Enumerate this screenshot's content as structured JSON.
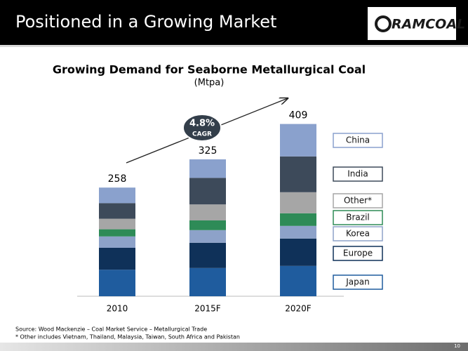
{
  "header": {
    "title": "Positioned in a Growing Market",
    "logo": "RAMCOAL"
  },
  "chart_data": {
    "type": "stacked-bar",
    "title": "Growing Demand for Seaborne Metallurgical Coal",
    "subtitle": "(Mtpa)",
    "categories": [
      "2010",
      "2015F",
      "2020F"
    ],
    "totals": [
      258,
      325,
      409
    ],
    "series": [
      {
        "name": "Japan",
        "color": "#1f5c9e",
        "values": [
          63,
          67,
          72
        ]
      },
      {
        "name": "Europe",
        "color": "#0f3159",
        "values": [
          52,
          60,
          65
        ]
      },
      {
        "name": "Korea",
        "color": "#8da2c9",
        "values": [
          27,
          30,
          30
        ]
      },
      {
        "name": "Brazil",
        "color": "#2e8b57",
        "values": [
          17,
          23,
          30
        ]
      },
      {
        "name": "Other*",
        "color": "#a6a6a6",
        "values": [
          25,
          38,
          50
        ]
      },
      {
        "name": "India",
        "color": "#3d4a5a",
        "values": [
          37,
          63,
          85
        ]
      },
      {
        "name": "China",
        "color": "#8aa1cd",
        "values": [
          37,
          44,
          77
        ]
      }
    ],
    "ylim": [
      0,
      420
    ],
    "annotations": [
      "4.8%",
      "CAGR"
    ]
  },
  "footer": {
    "notes": [
      "Source: Wood Mackenzie – Coal Market Service – Metallurgical Trade",
      "* Other includes Vietnam, Thailand, Malaysia, Taiwan, South Africa and Pakistan"
    ],
    "page": "10"
  }
}
